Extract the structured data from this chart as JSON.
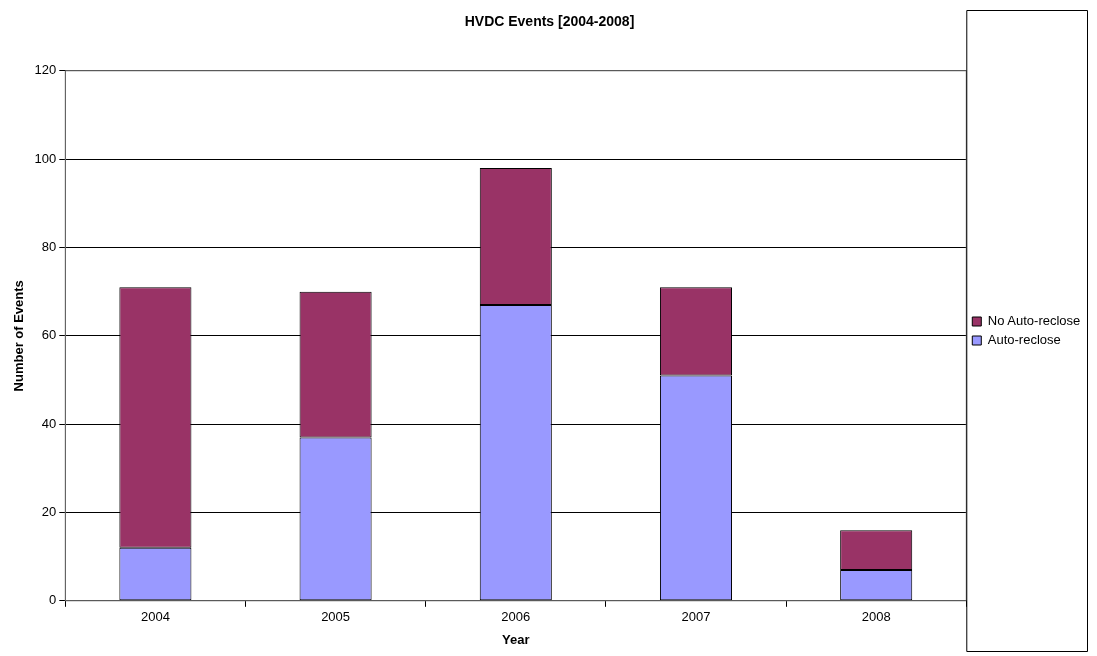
{
  "chart_data": {
    "type": "bar",
    "title": "HVDC Events [2004-2008]",
    "xlabel": "Year",
    "ylabel": "Number of Events",
    "categories": [
      "2004",
      "2005",
      "2006",
      "2007",
      "2008"
    ],
    "series": [
      {
        "name": "Auto-reclose",
        "color": "#9999ff",
        "values": [
          12,
          37,
          67,
          51,
          7
        ]
      },
      {
        "name": "No Auto-reclose",
        "color": "#993366",
        "values": [
          59,
          33,
          31,
          20,
          9
        ]
      }
    ],
    "stacked": true,
    "ylim": [
      0,
      120
    ],
    "yticks": [
      0,
      20,
      40,
      60,
      80,
      100,
      120
    ],
    "grid": "y",
    "legend": "right"
  }
}
